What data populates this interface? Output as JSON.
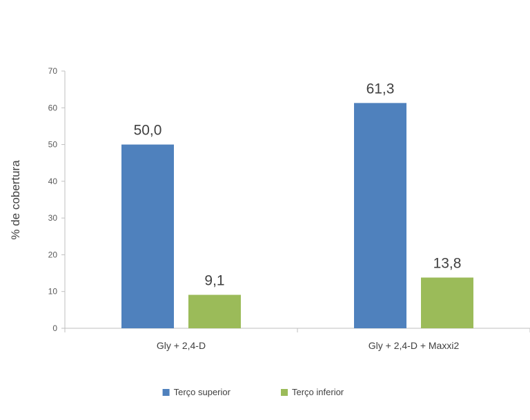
{
  "chart_data": {
    "type": "bar",
    "title": "",
    "xlabel": "",
    "ylabel": "% de cobertura",
    "ylim": [
      0,
      70
    ],
    "yticks": [
      0,
      10,
      20,
      30,
      40,
      50,
      60,
      70
    ],
    "grid": false,
    "legend_position": "bottom",
    "categories": [
      "Gly + 2,4-D",
      "Gly + 2,4-D + Maxxi2"
    ],
    "series": [
      {
        "name": "Terço superior",
        "color": "#4F81BD",
        "values": [
          50.0,
          61.3
        ],
        "labels": [
          "50,0",
          "61,3"
        ]
      },
      {
        "name": "Terço inferior",
        "color": "#9BBB59",
        "values": [
          9.1,
          13.8
        ],
        "labels": [
          "9,1",
          "13,8"
        ]
      }
    ]
  }
}
